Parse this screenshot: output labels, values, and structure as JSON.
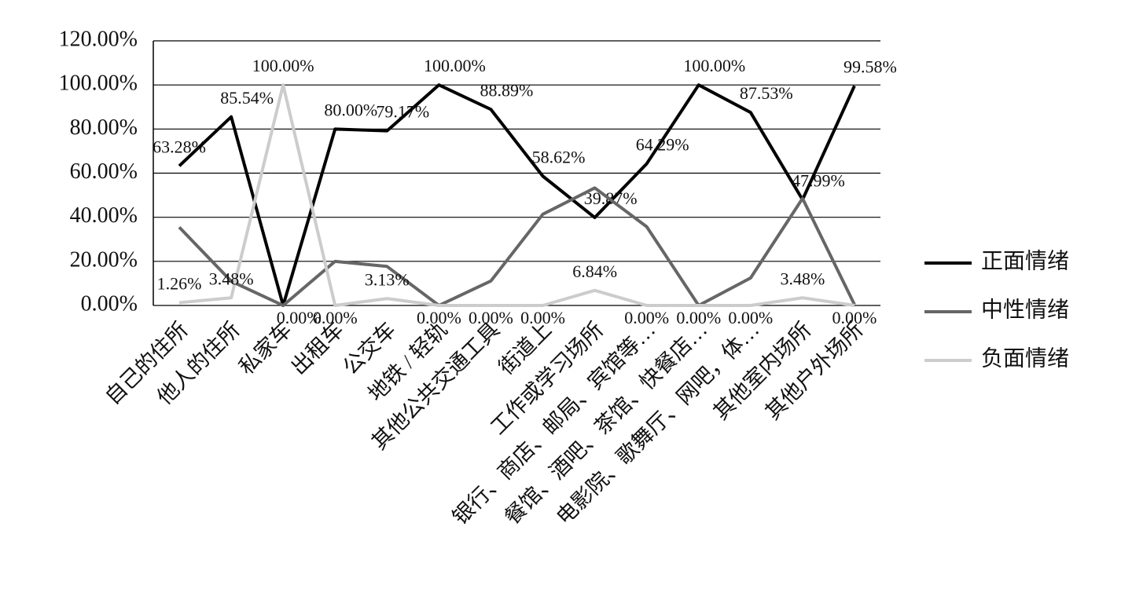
{
  "chart_data": {
    "type": "line",
    "categories": [
      "自己的住所",
      "他人的住所",
      "私家车",
      "出租车",
      "公交车",
      "地铁 / 轻轨",
      "其他公共交通工具",
      "街道上",
      "工作或学习场所",
      "银行、商店、邮局、宾馆等…",
      "餐馆、酒吧、茶馆、快餐店…",
      "电影院、歌舞厅、网吧，体…",
      "其他室内场所",
      "其他户外场所"
    ],
    "series": [
      {
        "name": "正面情绪",
        "color": "#000000",
        "values": [
          63.28,
          85.54,
          0,
          80,
          79.17,
          100,
          88.89,
          58.62,
          39.87,
          64.29,
          100,
          87.53,
          47.99,
          99.58
        ],
        "value_labels": [
          "63.28%",
          "85.54%",
          "0.00%",
          "80.00%",
          "79.17%",
          "100.00%",
          "88.89%",
          "58.62%",
          "39.87%",
          "64.29%",
          "100.00%",
          "87.53%",
          "47.99%",
          "99.58%"
        ]
      },
      {
        "name": "中性情绪",
        "color": "#666666",
        "values": [
          35.46,
          10.98,
          0,
          20,
          17.7,
          0,
          11.11,
          41.38,
          53.29,
          35.71,
          0,
          12.47,
          48.53,
          0.42
        ]
      },
      {
        "name": "负面情绪",
        "color": "#cccccc",
        "values": [
          1.26,
          3.48,
          100,
          0,
          3.13,
          0,
          0,
          0,
          6.84,
          0,
          0,
          0,
          3.48,
          0
        ],
        "value_labels": [
          "1.26%",
          "3.48%",
          "100.00%",
          "0.00%",
          "3.13%",
          "0.00%",
          "0.00%",
          "0.00%",
          "6.84%",
          "0.00%",
          "0.00%",
          "0.00%",
          "3.48%",
          "0.00%"
        ]
      }
    ],
    "ylim": [
      0,
      120
    ],
    "yticks": [
      {
        "value": 0,
        "label": "0.00%"
      },
      {
        "value": 20,
        "label": "20.00%"
      },
      {
        "value": 40,
        "label": "40.00%"
      },
      {
        "value": 60,
        "label": "60.00%"
      },
      {
        "value": 80,
        "label": "80.00%"
      },
      {
        "value": 100,
        "label": "100.00%"
      },
      {
        "value": 120,
        "label": "120.00%"
      }
    ],
    "grid": true,
    "legend": "right"
  }
}
